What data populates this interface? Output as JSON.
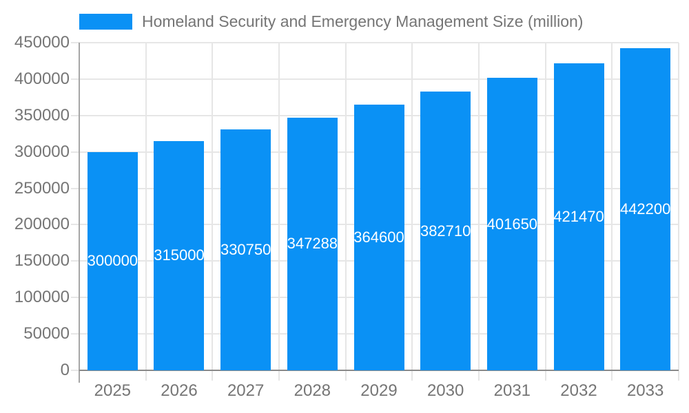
{
  "legend": {
    "label": "Homeland Security and Emergency Management Size (million)"
  },
  "colors": {
    "bar": "#0a91f5",
    "axis_text": "#757575",
    "grid": "#e6e6e6",
    "axis_line": "#a6a6a6",
    "baseline": "#8a8a8a",
    "bar_label": "#ffffff",
    "background": "#ffffff"
  },
  "chart_data": {
    "type": "bar",
    "title": "Homeland Security and Emergency Management Size (million)",
    "series_name": "Homeland Security and Emergency Management Size (million)",
    "categories": [
      "2025",
      "2026",
      "2027",
      "2028",
      "2029",
      "2030",
      "2031",
      "2032",
      "2033"
    ],
    "values": [
      300000,
      315000,
      330750,
      347288,
      364600,
      382710,
      401650,
      421470,
      442200
    ],
    "bar_labels": [
      "300000",
      "315000",
      "330750",
      "347288",
      "364600",
      "382710",
      "401650",
      "421470",
      "442200"
    ],
    "xlabel": "",
    "ylabel": "",
    "ylim": [
      0,
      450000
    ],
    "ytick_step": 50000,
    "yticks": [
      0,
      50000,
      100000,
      150000,
      200000,
      250000,
      300000,
      350000,
      400000,
      450000
    ],
    "grid": true,
    "legend_position": "top-left",
    "bar_value_labels_position": "center-inside-clipped"
  }
}
